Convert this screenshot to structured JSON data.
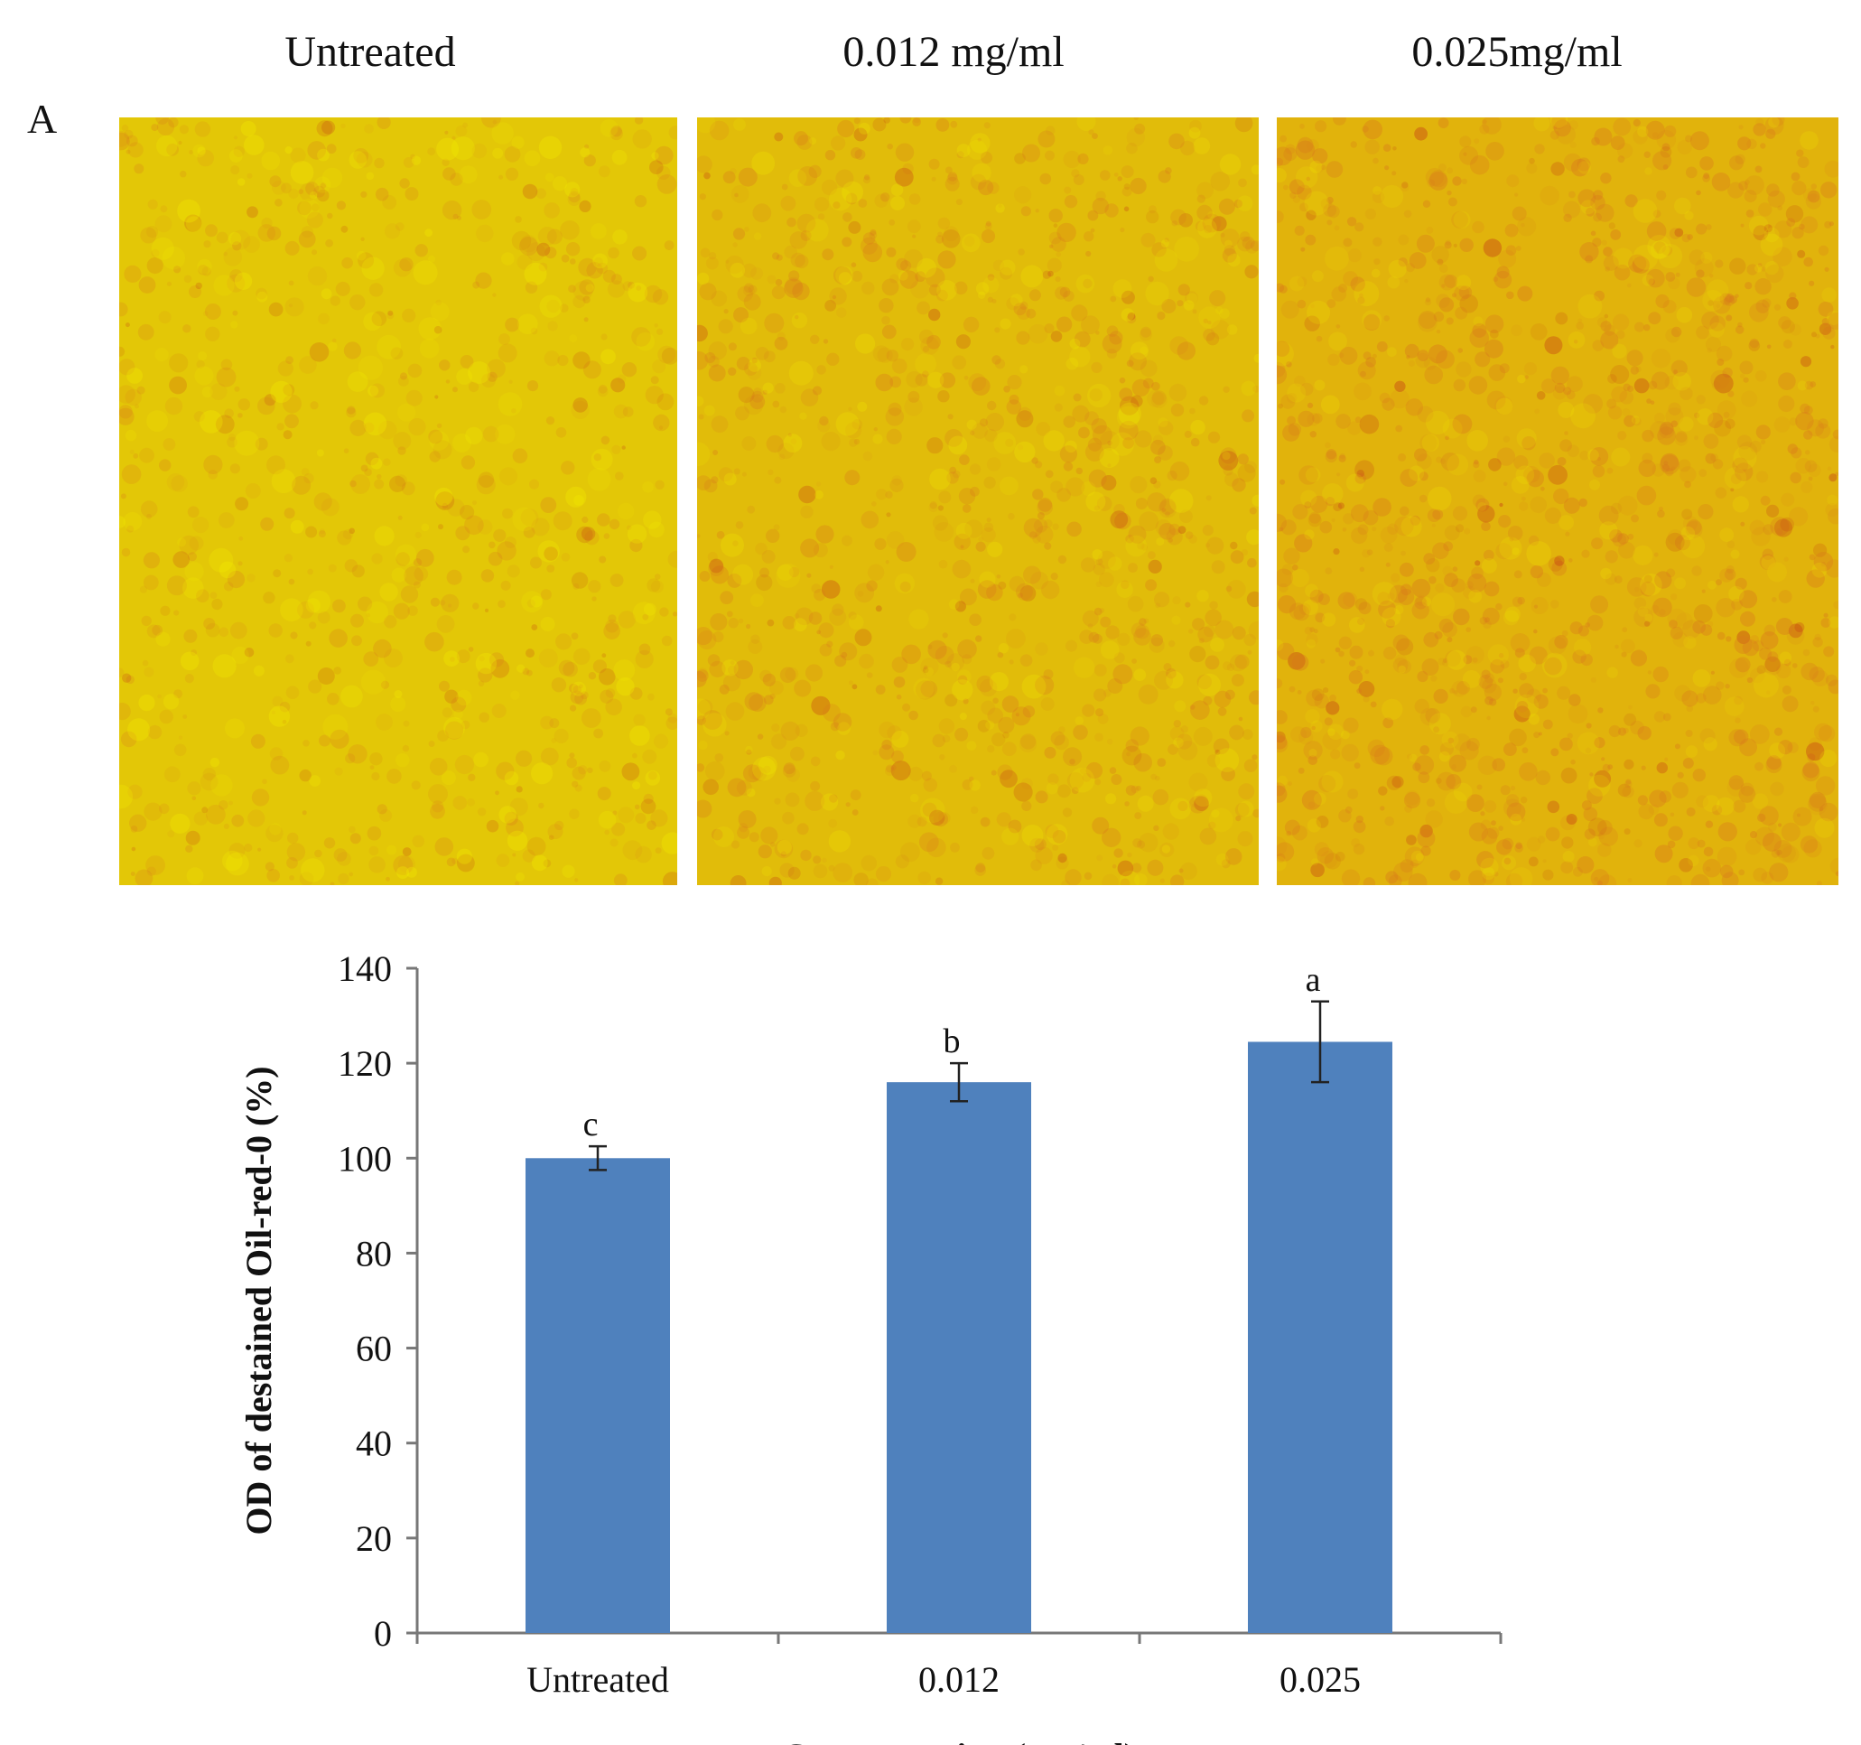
{
  "figure": {
    "panel_letter": "A",
    "image_labels": [
      "Untreated",
      "0.012 mg/ml",
      "0.025mg/ml"
    ],
    "stain_colors": {
      "base": "#e6e000",
      "stain": "#d9781c",
      "dark_stain": "#c43a16"
    }
  },
  "chart_data": {
    "type": "bar",
    "categories": [
      "Untreated",
      "0.012",
      "0.025"
    ],
    "series": [
      {
        "values": [
          100,
          116,
          124.5
        ],
        "errors": [
          2.5,
          4,
          8.5
        ],
        "color": "#4f81bd"
      }
    ],
    "significance_letters": [
      "c",
      "b",
      "a"
    ],
    "xlabel": "Concentration (mg/ml)",
    "ylabel": "OD of destained Oil-red-0 (%)",
    "ylim": [
      0,
      140
    ],
    "yticks": [
      0,
      20,
      40,
      60,
      80,
      100,
      120,
      140
    ],
    "grid": false,
    "legend": "none"
  }
}
